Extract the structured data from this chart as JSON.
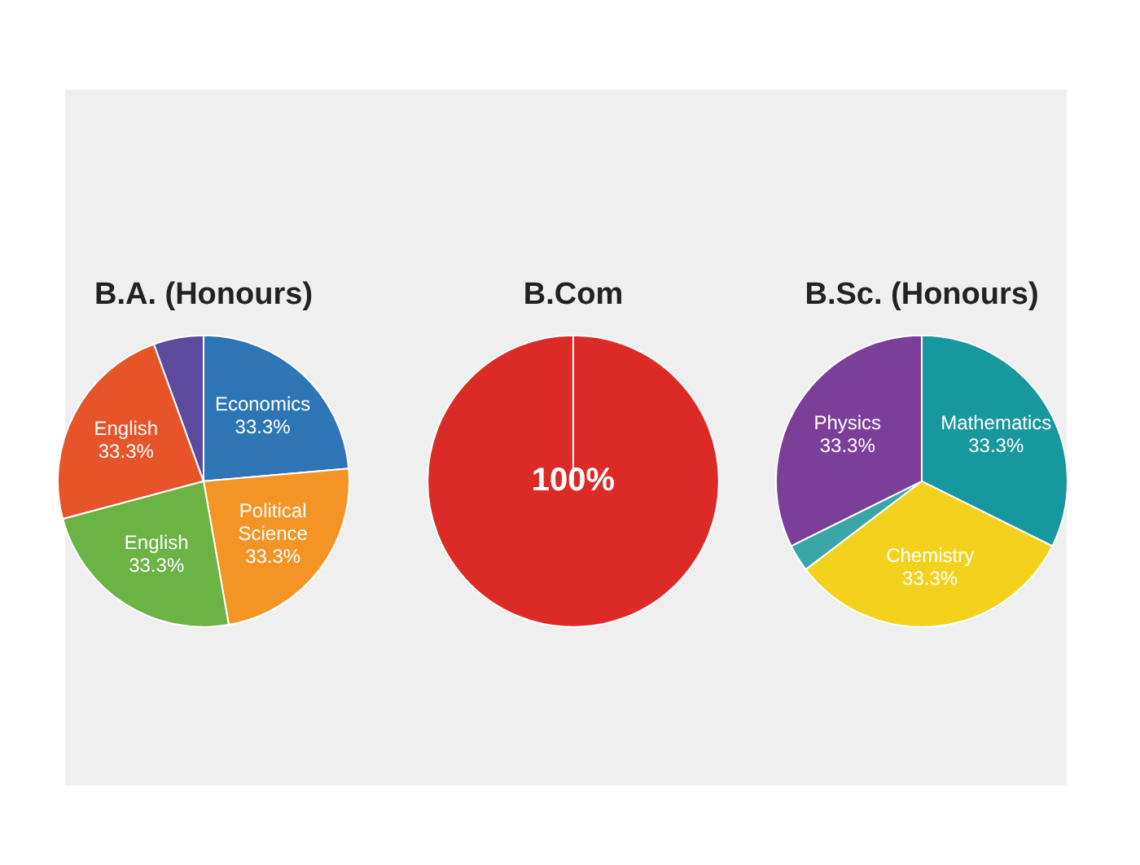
{
  "chart_data": [
    {
      "type": "pie",
      "title": "B.A. (Honours)",
      "categories": [
        "Economics",
        "Political Science",
        "English",
        "English",
        null
      ],
      "values": [
        33.3,
        33.3,
        33.3,
        33.3,
        7.8
      ],
      "colors": [
        "#2e75b6",
        "#f39425",
        "#6ab344",
        "#e8542a",
        "#5b4a9e"
      ],
      "value_labels": [
        "33.3%",
        "33.3%",
        "33.3%",
        "33.3%",
        null
      ]
    },
    {
      "type": "pie",
      "title": "B.Com",
      "categories": [
        null
      ],
      "values": [
        100
      ],
      "colors": [
        "#dc2a26"
      ],
      "value_labels": [
        "100%"
      ]
    },
    {
      "type": "pie",
      "title": "B.Sc. (Honours)",
      "categories": [
        "Mathematics",
        "Chemistry",
        null,
        "Physics"
      ],
      "values": [
        33.3,
        33.3,
        3.1,
        33.3
      ],
      "colors": [
        "#17979e",
        "#f3d21d",
        "#3aa6a8",
        "#7b3f9a"
      ],
      "value_labels": [
        "33.3%",
        "33.3%",
        null,
        "33.3%"
      ]
    }
  ]
}
